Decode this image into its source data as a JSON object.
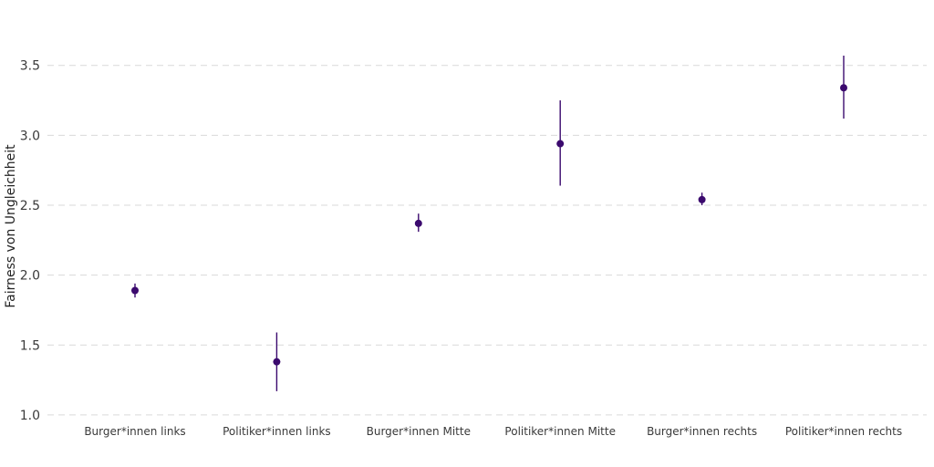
{
  "colors": {
    "point": "#3b0a6e",
    "errorbar": "#3b0a6e",
    "grid": "#d9d9d9"
  },
  "chart_data": {
    "type": "scatter",
    "title": "",
    "xlabel": "",
    "ylabel": "Fairness von Ungleichheit",
    "ylim": [
      0.98,
      3.72
    ],
    "yticks": [
      1.0,
      1.5,
      2.0,
      2.5,
      3.0,
      3.5
    ],
    "ytick_labels": [
      "1.0",
      "1.5",
      "2.0",
      "2.5",
      "3.0",
      "3.5"
    ],
    "grid": "horizontal dashed",
    "legend": "none",
    "categories": [
      "Burger*innen links",
      "Politiker*innen links",
      "Burger*innen Mitte",
      "Politiker*innen Mitte",
      "Burger*innen rechts",
      "Politiker*innen rechts"
    ],
    "series": [
      {
        "values": [
          1.89,
          1.38,
          2.37,
          2.94,
          2.54,
          3.34
        ],
        "lower": [
          1.84,
          1.17,
          2.31,
          2.64,
          2.5,
          3.12
        ],
        "upper": [
          1.94,
          1.59,
          2.44,
          3.25,
          2.59,
          3.57
        ]
      }
    ]
  }
}
